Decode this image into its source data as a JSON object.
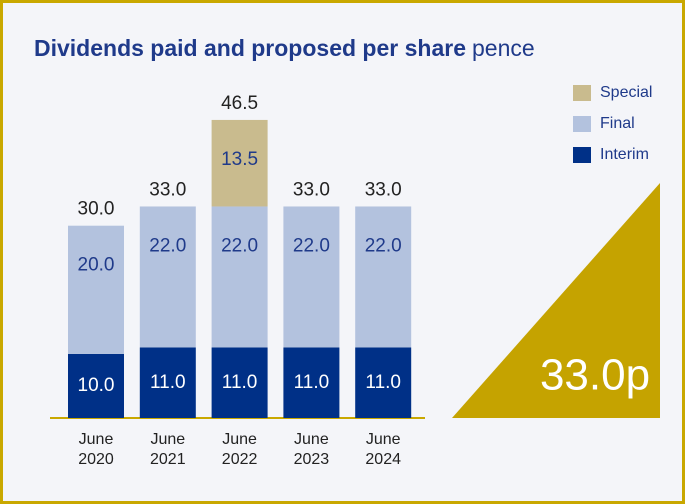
{
  "chart_data": {
    "type": "stacked_bar",
    "title": "Dividends paid and proposed per share",
    "unit": "pence",
    "categories": [
      "June 2020",
      "June 2021",
      "June 2022",
      "June 2023",
      "June 2024"
    ],
    "series": [
      {
        "name": "Interim",
        "color": "#003087",
        "label_color": "#ffffff",
        "values": [
          10,
          11,
          11,
          11,
          11
        ],
        "value_labels": [
          "10.0",
          "11.0",
          "11.0",
          "11.0",
          "11.0"
        ]
      },
      {
        "name": "Final",
        "color": "#b3c2de",
        "label_color": "#1f3a8a",
        "values": [
          20,
          22,
          22,
          22,
          22
        ],
        "value_labels": [
          "20.0",
          "22.0",
          "22.0",
          "22.0",
          "22.0"
        ]
      },
      {
        "name": "Special",
        "color": "#c9bb8e",
        "label_color": "#1f3a8a",
        "values": [
          null,
          null,
          13.5,
          null,
          null
        ],
        "value_labels": [
          null,
          null,
          "13.5",
          null,
          null
        ]
      }
    ],
    "totals": [
      30,
      33,
      46.5,
      33,
      33
    ],
    "total_labels": [
      "30.0",
      "33.0",
      "46.5",
      "33.0",
      "33.0"
    ],
    "ylim": [
      0,
      50
    ],
    "highlight": "33.0p"
  }
}
